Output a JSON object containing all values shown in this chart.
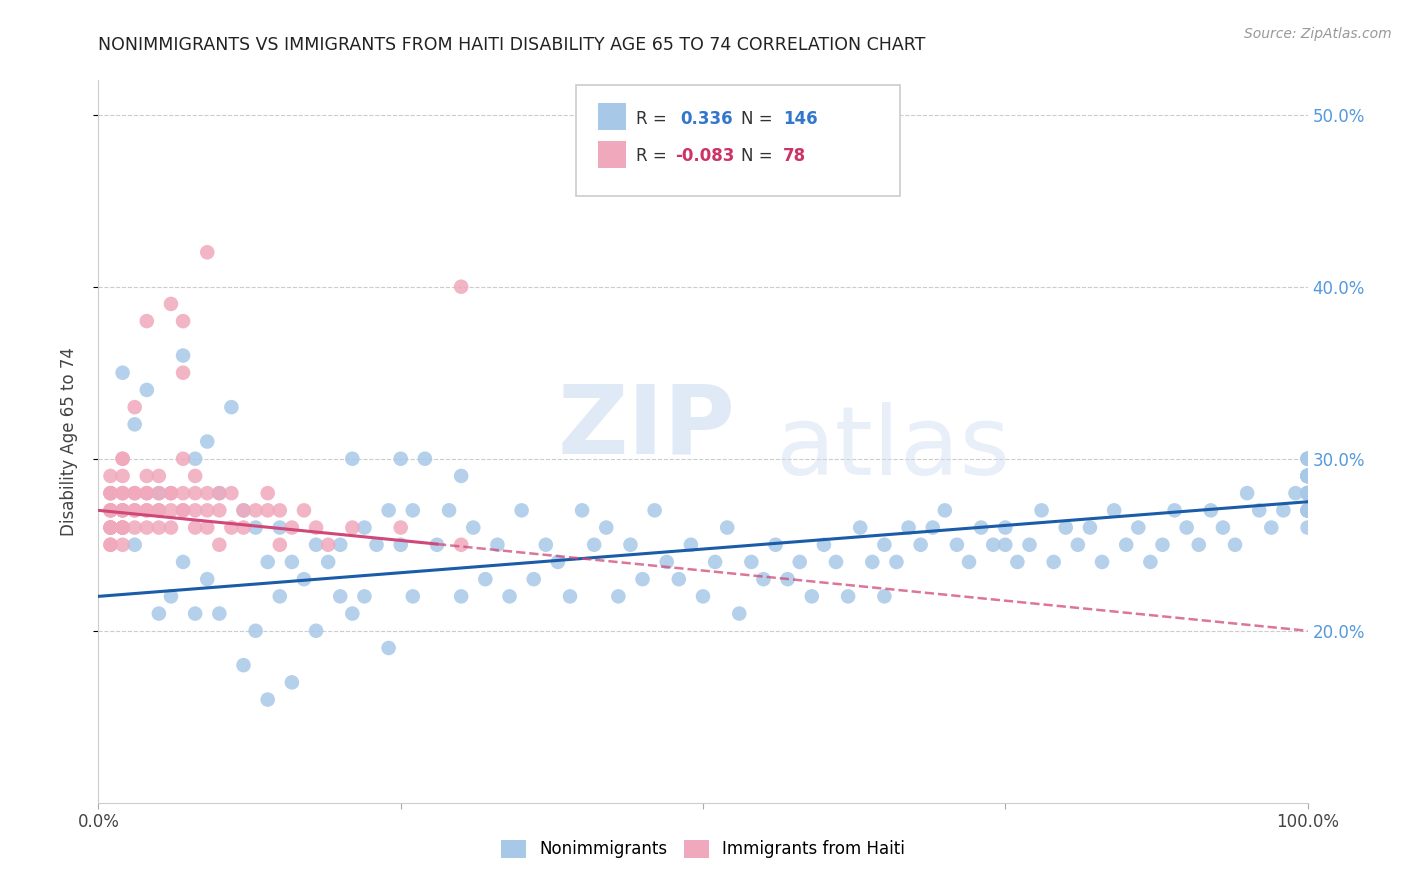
{
  "title": "NONIMMIGRANTS VS IMMIGRANTS FROM HAITI DISABILITY AGE 65 TO 74 CORRELATION CHART",
  "source": "Source: ZipAtlas.com",
  "ylabel": "Disability Age 65 to 74",
  "blue_R": "0.336",
  "blue_N": "146",
  "pink_R": "-0.083",
  "pink_N": "78",
  "blue_color": "#a8c8e8",
  "pink_color": "#f0a8bc",
  "blue_line_color": "#1a5ca8",
  "pink_line_color": "#d04878",
  "legend_label_blue": "Nonimmigrants",
  "legend_label_pink": "Immigrants from Haiti",
  "watermark_zip": "ZIP",
  "watermark_atlas": "atlas",
  "xlim": [
    0,
    100
  ],
  "ylim": [
    10,
    52
  ],
  "blue_trend_y0": 22.0,
  "blue_trend_y1": 27.5,
  "pink_trend_y0": 27.0,
  "pink_trend_y1": 20.0,
  "pink_solid_end": 28,
  "blue_scatter_x": [
    2,
    3,
    3,
    4,
    5,
    5,
    6,
    7,
    7,
    8,
    8,
    9,
    9,
    10,
    10,
    11,
    12,
    12,
    13,
    13,
    14,
    14,
    15,
    15,
    16,
    16,
    17,
    18,
    18,
    19,
    20,
    20,
    21,
    21,
    22,
    22,
    23,
    24,
    24,
    25,
    25,
    26,
    26,
    27,
    28,
    29,
    30,
    30,
    31,
    32,
    33,
    34,
    35,
    36,
    37,
    38,
    39,
    40,
    41,
    42,
    43,
    44,
    45,
    46,
    47,
    48,
    49,
    50,
    51,
    52,
    53,
    54,
    55,
    56,
    57,
    58,
    59,
    60,
    61,
    62,
    63,
    64,
    65,
    65,
    66,
    67,
    68,
    69,
    70,
    71,
    72,
    73,
    74,
    75,
    75,
    76,
    77,
    78,
    79,
    80,
    81,
    82,
    83,
    84,
    85,
    86,
    87,
    88,
    89,
    90,
    91,
    92,
    93,
    94,
    95,
    96,
    97,
    98,
    99,
    100,
    100,
    100,
    100,
    100,
    100,
    100,
    100,
    100,
    100,
    100,
    100,
    100,
    100,
    100,
    100,
    100,
    100,
    100,
    100,
    100,
    100,
    100,
    100,
    100,
    100,
    100
  ],
  "blue_scatter_y": [
    35,
    32,
    25,
    34,
    28,
    21,
    22,
    36,
    24,
    30,
    21,
    31,
    23,
    28,
    21,
    33,
    27,
    18,
    26,
    20,
    24,
    16,
    26,
    22,
    24,
    17,
    23,
    25,
    20,
    24,
    25,
    22,
    30,
    21,
    26,
    22,
    25,
    27,
    19,
    30,
    25,
    27,
    22,
    30,
    25,
    27,
    29,
    22,
    26,
    23,
    25,
    22,
    27,
    23,
    25,
    24,
    22,
    27,
    25,
    26,
    22,
    25,
    23,
    27,
    24,
    23,
    25,
    22,
    24,
    26,
    21,
    24,
    23,
    25,
    23,
    24,
    22,
    25,
    24,
    22,
    26,
    24,
    25,
    22,
    24,
    26,
    25,
    26,
    27,
    25,
    24,
    26,
    25,
    26,
    25,
    24,
    25,
    27,
    24,
    26,
    25,
    26,
    24,
    27,
    25,
    26,
    24,
    25,
    27,
    26,
    25,
    27,
    26,
    25,
    28,
    27,
    26,
    27,
    28,
    30,
    28,
    27,
    29,
    28,
    29,
    30,
    28,
    27,
    29,
    28,
    26,
    29,
    28,
    27,
    29,
    28,
    29,
    27,
    28,
    29,
    30,
    27,
    29,
    28,
    29,
    27
  ],
  "pink_scatter_x": [
    1,
    1,
    1,
    1,
    1,
    1,
    1,
    1,
    1,
    1,
    1,
    1,
    1,
    2,
    2,
    2,
    2,
    2,
    2,
    2,
    2,
    2,
    2,
    2,
    2,
    2,
    3,
    3,
    3,
    3,
    3,
    3,
    4,
    4,
    4,
    4,
    4,
    4,
    5,
    5,
    5,
    5,
    5,
    6,
    6,
    6,
    6,
    7,
    7,
    7,
    7,
    7,
    8,
    8,
    8,
    8,
    9,
    9,
    9,
    10,
    10,
    10,
    11,
    11,
    12,
    12,
    13,
    14,
    14,
    15,
    15,
    16,
    17,
    18,
    19,
    21,
    25,
    30
  ],
  "pink_scatter_y": [
    27,
    26,
    28,
    25,
    29,
    26,
    27,
    28,
    26,
    25,
    27,
    26,
    28,
    27,
    28,
    26,
    30,
    27,
    26,
    28,
    29,
    25,
    26,
    30,
    27,
    26,
    28,
    27,
    26,
    33,
    27,
    28,
    29,
    27,
    28,
    26,
    27,
    28,
    28,
    27,
    29,
    26,
    27,
    27,
    28,
    26,
    28,
    27,
    28,
    35,
    30,
    27,
    28,
    27,
    29,
    26,
    28,
    27,
    26,
    28,
    27,
    25,
    26,
    28,
    27,
    26,
    27,
    28,
    27,
    27,
    25,
    26,
    27,
    26,
    25,
    26,
    26,
    25
  ],
  "pink_outlier_x": [
    4,
    6,
    7,
    9,
    30
  ],
  "pink_outlier_y": [
    38,
    39,
    38,
    42,
    40
  ]
}
